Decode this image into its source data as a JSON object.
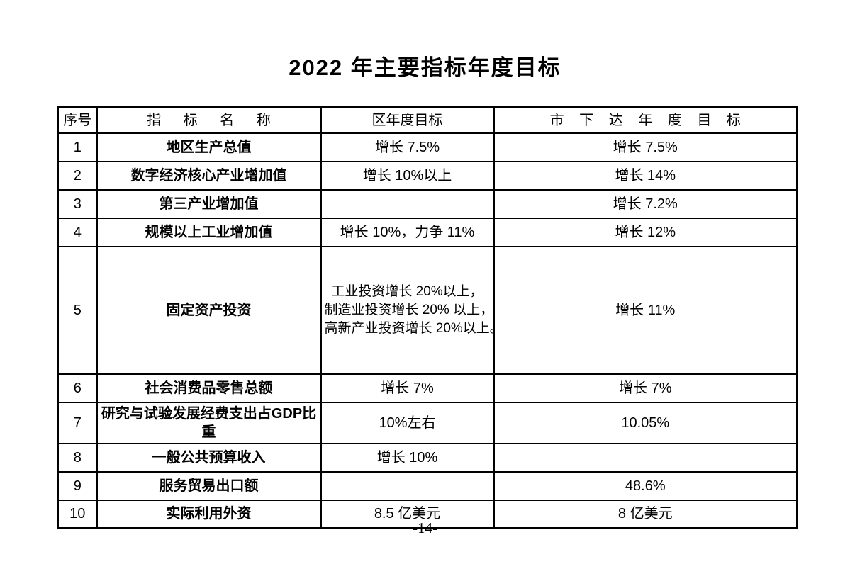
{
  "page": {
    "title": "2022 年主要指标年度目标",
    "page_number": "-14-"
  },
  "table": {
    "columns": {
      "serial": "序号",
      "name": "指 标 名 称",
      "district": "区年度目标",
      "city": "市 下 达 年 度 目 标"
    },
    "rows": [
      {
        "num": "1",
        "name": "地区生产总值",
        "district": "增长 7.5%",
        "city": "增长 7.5%"
      },
      {
        "num": "2",
        "name": "数字经济核心产业增加值",
        "district": "增长 10%以上",
        "city": "增长 14%"
      },
      {
        "num": "3",
        "name": "第三产业增加值",
        "district": "",
        "city": "增长 7.2%"
      },
      {
        "num": "4",
        "name": "规模以上工业增加值",
        "district": "增长 10%，力争 11%",
        "city": "增长 12%"
      },
      {
        "num": "5",
        "name": "固定资产投资",
        "district_lines": [
          "工业投资增长 20%以上，",
          "制造业投资增长 20% 以上，",
          "高新产业投资增长 20%以上。"
        ],
        "city": "增长 11%"
      },
      {
        "num": "6",
        "name": "社会消费品零售总额",
        "district": "增长 7%",
        "city": "增长 7%"
      },
      {
        "num": "7",
        "name": "研究与试验发展经费支出占GDP比重",
        "district": "10%左右",
        "city": "10.05%"
      },
      {
        "num": "8",
        "name": "一般公共预算收入",
        "district": "增长 10%",
        "city": ""
      },
      {
        "num": "9",
        "name": "服务贸易出口额",
        "district": "",
        "city": "48.6%"
      },
      {
        "num": "10",
        "name": "实际利用外资",
        "district": "8.5 亿美元",
        "city": "8 亿美元"
      }
    ]
  }
}
